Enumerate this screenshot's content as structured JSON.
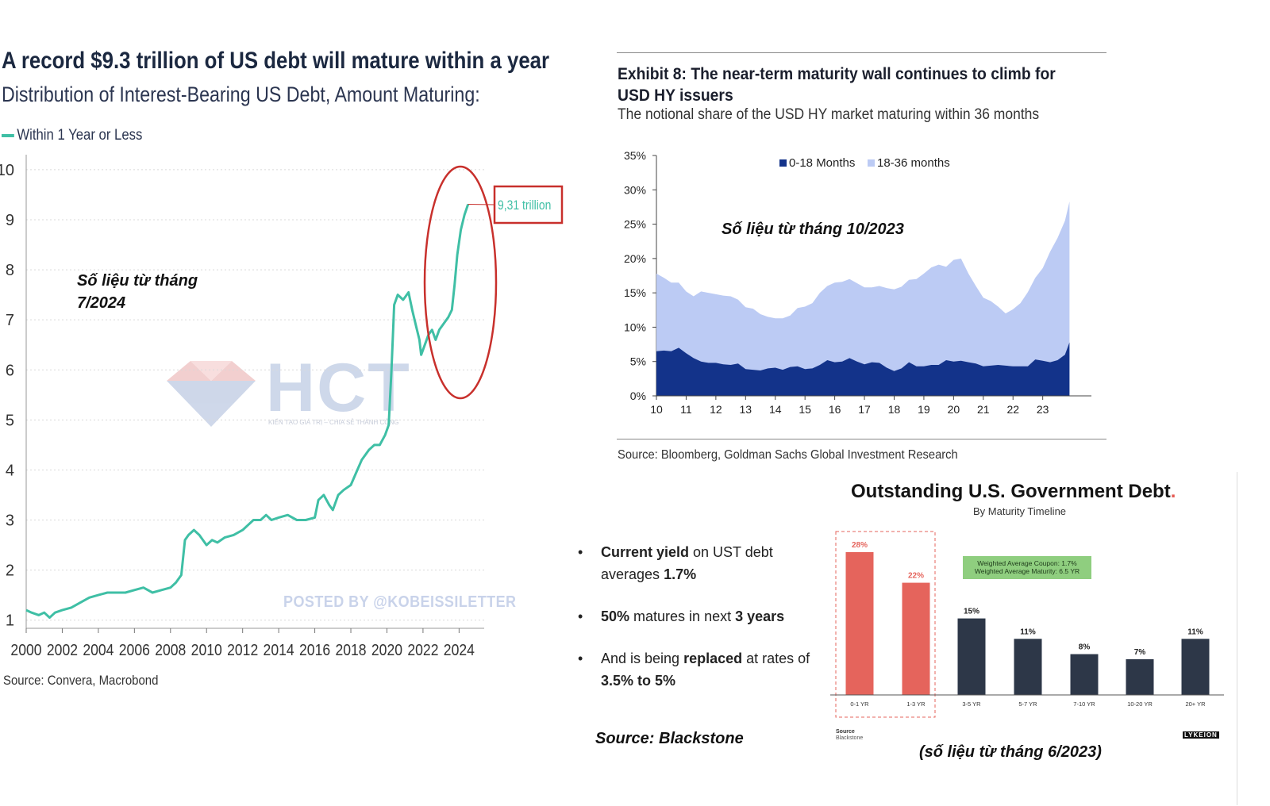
{
  "panel1": {
    "title": "A record $9.3 trillion of US debt will mature within a year",
    "subtitle": "Distribution of Interest-Bearing US Debt, Amount Maturing:",
    "legend_label": "Within 1 Year or Less",
    "annotation_note_line1": "Số liệu từ tháng",
    "annotation_note_line2": "7/2024",
    "callout_value": "9,31 trillion",
    "posted_by": "POSTED BY @KOBEISSILETTER",
    "source": "Source: Convera, Macrobond",
    "watermark_text": "HCT",
    "watermark_tagline": "KIẾN TẠO GIÁ TRỊ – CHIA SẺ THÀNH CÔNG",
    "line_color": "#3fbfa5",
    "highlight_color": "#c8302c"
  },
  "panel2": {
    "title": "Exhibit 8: The near-term maturity wall continues to climb for USD HY issuers",
    "subtitle": "The notional share of the USD HY market maturing within 36 months",
    "legend": [
      "0-18 Months",
      "18-36 months"
    ],
    "note": "Số liệu từ tháng 10/2023",
    "source": "Source: Bloomberg, Goldman Sachs Global Investment Research",
    "colors": {
      "dark": "#13338a",
      "light": "#bccbf4"
    }
  },
  "panel3": {
    "title": "Outstanding U.S. Government Debt",
    "title_dot": ".",
    "subtitle": "By Maturity Timeline",
    "wac_line1": "Weighted Average Coupon: 1.7%",
    "wac_line2": "Weighted Average Maturity: 6.5 YR",
    "source_label": "Source",
    "source_value": "Blackstone",
    "logo": "LYKEION",
    "note": "(số liệu từ tháng 6/2023)",
    "colors": {
      "red": "#e5645c",
      "navy": "#2d3748"
    }
  },
  "bullets": {
    "b1_bold": "Current yield",
    "b1_text": " on UST debt averages ",
    "b1_bold2": "1.7%",
    "b2_bold": "50%",
    "b2_text": " matures in next ",
    "b2_bold2": "3 years",
    "b3_text": "And is being ",
    "b3_bold": "replaced",
    "b3_text2": " at rates of ",
    "b3_bold2": "3.5% to 5%",
    "source": "Source: Blackstone"
  },
  "chart_data": [
    {
      "type": "line",
      "title": "A record $9.3 trillion of US debt will mature within a year",
      "series_name": "Within 1 Year or Less",
      "xlim": [
        2000,
        2024.6
      ],
      "ylim": [
        0.9,
        10.3
      ],
      "x_ticks": [
        "2000",
        "2002",
        "2004",
        "2006",
        "2008",
        "2010",
        "2012",
        "2014",
        "2016",
        "2018",
        "2020",
        "2022",
        "2024"
      ],
      "y_ticks": [
        "1",
        "2",
        "3",
        "4",
        "5",
        "6",
        "7",
        "8",
        "9",
        "10"
      ],
      "points": [
        [
          2000.0,
          1.2
        ],
        [
          2000.3,
          1.15
        ],
        [
          2000.7,
          1.1
        ],
        [
          2001.0,
          1.15
        ],
        [
          2001.3,
          1.05
        ],
        [
          2001.6,
          1.15
        ],
        [
          2002.0,
          1.2
        ],
        [
          2002.5,
          1.25
        ],
        [
          2003.0,
          1.35
        ],
        [
          2003.5,
          1.45
        ],
        [
          2004.0,
          1.5
        ],
        [
          2004.5,
          1.55
        ],
        [
          2005.0,
          1.55
        ],
        [
          2005.5,
          1.55
        ],
        [
          2006.0,
          1.6
        ],
        [
          2006.5,
          1.65
        ],
        [
          2007.0,
          1.55
        ],
        [
          2007.5,
          1.6
        ],
        [
          2008.0,
          1.65
        ],
        [
          2008.3,
          1.75
        ],
        [
          2008.6,
          1.9
        ],
        [
          2008.8,
          2.6
        ],
        [
          2009.0,
          2.7
        ],
        [
          2009.3,
          2.8
        ],
        [
          2009.6,
          2.7
        ],
        [
          2010.0,
          2.5
        ],
        [
          2010.3,
          2.6
        ],
        [
          2010.6,
          2.55
        ],
        [
          2011.0,
          2.65
        ],
        [
          2011.5,
          2.7
        ],
        [
          2012.0,
          2.8
        ],
        [
          2012.3,
          2.9
        ],
        [
          2012.6,
          3.0
        ],
        [
          2013.0,
          3.0
        ],
        [
          2013.3,
          3.1
        ],
        [
          2013.6,
          3.0
        ],
        [
          2014.0,
          3.05
        ],
        [
          2014.5,
          3.1
        ],
        [
          2015.0,
          3.0
        ],
        [
          2015.5,
          3.0
        ],
        [
          2016.0,
          3.05
        ],
        [
          2016.2,
          3.4
        ],
        [
          2016.5,
          3.5
        ],
        [
          2016.8,
          3.3
        ],
        [
          2017.0,
          3.2
        ],
        [
          2017.3,
          3.5
        ],
        [
          2017.6,
          3.6
        ],
        [
          2018.0,
          3.7
        ],
        [
          2018.3,
          3.95
        ],
        [
          2018.6,
          4.2
        ],
        [
          2019.0,
          4.4
        ],
        [
          2019.3,
          4.5
        ],
        [
          2019.6,
          4.5
        ],
        [
          2019.9,
          4.7
        ],
        [
          2020.1,
          4.9
        ],
        [
          2020.25,
          6.0
        ],
        [
          2020.4,
          7.3
        ],
        [
          2020.6,
          7.5
        ],
        [
          2020.9,
          7.4
        ],
        [
          2021.2,
          7.55
        ],
        [
          2021.4,
          7.2
        ],
        [
          2021.6,
          6.9
        ],
        [
          2021.8,
          6.6
        ],
        [
          2021.9,
          6.3
        ],
        [
          2022.1,
          6.5
        ],
        [
          2022.3,
          6.7
        ],
        [
          2022.5,
          6.8
        ],
        [
          2022.7,
          6.6
        ],
        [
          2022.9,
          6.8
        ],
        [
          2023.2,
          6.95
        ],
        [
          2023.4,
          7.05
        ],
        [
          2023.6,
          7.2
        ],
        [
          2023.75,
          7.7
        ],
        [
          2023.9,
          8.3
        ],
        [
          2024.1,
          8.8
        ],
        [
          2024.3,
          9.1
        ],
        [
          2024.5,
          9.31
        ]
      ],
      "callout": "9,31 trillion",
      "source": "Source: Convera, Macrobond"
    },
    {
      "type": "area",
      "title": "Exhibit 8: The near-term maturity wall continues to climb for USD HY issuers",
      "xlim": [
        10,
        23.9
      ],
      "ylim": [
        0,
        35
      ],
      "x_ticks": [
        "10",
        "11",
        "12",
        "13",
        "14",
        "15",
        "16",
        "17",
        "18",
        "19",
        "20",
        "21",
        "22",
        "23"
      ],
      "y_ticks": [
        "0%",
        "5%",
        "10%",
        "15%",
        "20%",
        "25%",
        "30%",
        "35%"
      ],
      "x": [
        10,
        10.25,
        10.5,
        10.75,
        11,
        11.25,
        11.5,
        11.75,
        12,
        12.25,
        12.5,
        12.75,
        13,
        13.25,
        13.5,
        13.75,
        14,
        14.25,
        14.5,
        14.75,
        15,
        15.25,
        15.5,
        15.75,
        16,
        16.25,
        16.5,
        16.75,
        17,
        17.25,
        17.5,
        17.75,
        18,
        18.25,
        18.5,
        18.75,
        19,
        19.25,
        19.5,
        19.75,
        20,
        20.25,
        20.5,
        20.75,
        21,
        21.25,
        21.5,
        21.75,
        22,
        22.25,
        22.5,
        22.75,
        23,
        23.25,
        23.5,
        23.75,
        23.9
      ],
      "series": [
        {
          "name": "0-18 Months",
          "values": [
            6.5,
            6.6,
            6.5,
            7.0,
            6.2,
            5.5,
            5.0,
            4.8,
            4.8,
            4.6,
            4.5,
            4.7,
            3.9,
            3.8,
            3.7,
            4.0,
            4.1,
            3.8,
            4.2,
            4.3,
            3.9,
            4.0,
            4.5,
            5.2,
            4.9,
            5.0,
            5.5,
            5.0,
            4.6,
            4.9,
            4.8,
            4.1,
            3.6,
            4.0,
            4.9,
            4.3,
            4.3,
            4.5,
            4.5,
            5.2,
            5.0,
            5.1,
            4.9,
            4.7,
            4.3,
            4.4,
            4.5,
            4.4,
            4.3,
            4.3,
            4.3,
            5.3,
            5.1,
            4.9,
            5.2,
            6.0,
            7.8
          ]
        },
        {
          "name": "18-36 months",
          "values": [
            11.3,
            10.6,
            10.0,
            9.5,
            9.0,
            9.0,
            10.2,
            10.2,
            10.0,
            10.0,
            10.0,
            9.3,
            9.0,
            8.9,
            8.2,
            7.5,
            7.2,
            7.5,
            7.5,
            8.5,
            9.1,
            9.5,
            10.5,
            10.8,
            11.6,
            11.6,
            11.5,
            11.4,
            11.2,
            10.9,
            11.2,
            11.6,
            11.9,
            11.9,
            12.0,
            12.7,
            13.5,
            14.2,
            14.6,
            13.6,
            14.8,
            14.9,
            12.9,
            11.3,
            10.0,
            9.4,
            8.5,
            7.6,
            8.3,
            9.2,
            10.8,
            11.9,
            13.5,
            16.1,
            17.8,
            19.5,
            20.5
          ]
        }
      ],
      "legend": [
        "0-18 Months",
        "18-36 months"
      ],
      "source": "Source: Bloomberg, Goldman Sachs Global Investment Research"
    },
    {
      "type": "bar",
      "title": "Outstanding U.S. Government Debt",
      "subtitle": "By Maturity Timeline",
      "categories": [
        "0-1 YR",
        "1-3 YR",
        "3-5 YR",
        "5-7 YR",
        "7-10 YR",
        "10-20 YR",
        "20+ YR"
      ],
      "values": [
        28,
        22,
        15,
        11,
        8,
        7,
        11
      ],
      "value_labels": [
        "28%",
        "22%",
        "15%",
        "11%",
        "8%",
        "7%",
        "11%"
      ],
      "highlighted": [
        true,
        true,
        false,
        false,
        false,
        false,
        false
      ],
      "ylim": [
        0,
        30
      ],
      "annotation": [
        "Weighted Average Coupon: 1.7%",
        "Weighted Average Maturity: 6.5 YR"
      ]
    }
  ]
}
